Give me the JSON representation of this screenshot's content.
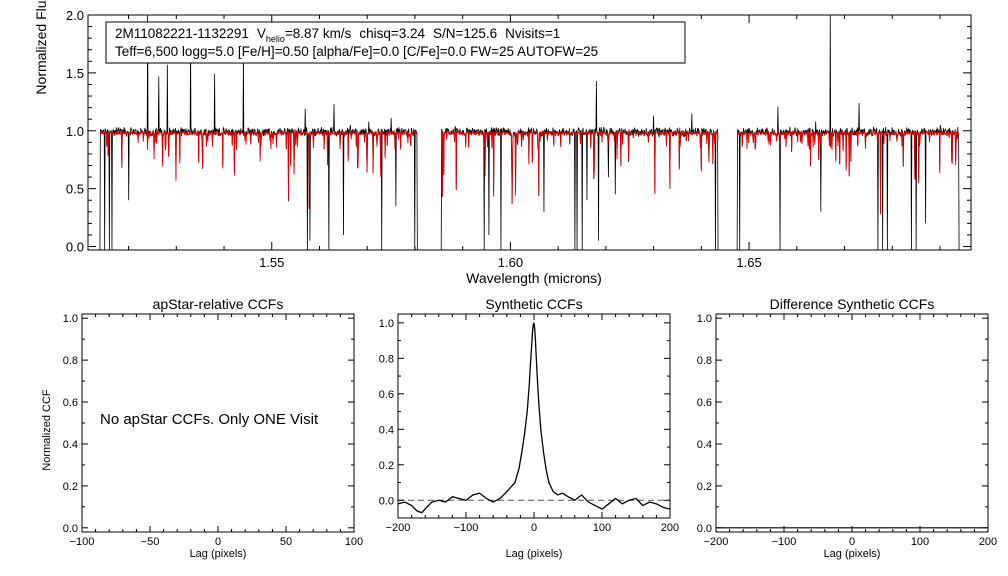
{
  "colors": {
    "observed": "#000000",
    "model": "#dd0000",
    "axis": "#000000",
    "reference": "#555555"
  },
  "info_box": {
    "object": "2M11082221-1132291",
    "vhelio_label": "V",
    "vhelio_sub": "helio",
    "vhelio_text": "=8.87 km/s",
    "chisq_text": "chisq=3.24",
    "sn_text": "S/N=125.6",
    "nvisits_text": "Nvisits=1",
    "params_line": "Teff=6,500 logg=5.0 [Fe/H]=0.50 [alpha/Fe]=0.0 [C/Fe]=0.0 FW=25 AUTOFW=25"
  },
  "chart_data": [
    {
      "id": "spectrum",
      "type": "line",
      "title": "",
      "xlabel": "Wavelength (microns)",
      "ylabel": "Normalized Flux",
      "xlim": [
        1.5115,
        1.6965
      ],
      "ylim": [
        -0.03,
        2.0
      ],
      "xticks": [
        1.55,
        1.6,
        1.65
      ],
      "xtick_labels": [
        "1.55",
        "1.60",
        "1.65"
      ],
      "yticks": [
        0.0,
        0.5,
        1.0,
        1.5,
        2.0
      ],
      "ytick_labels": [
        "0.0",
        "0.5",
        "1.0",
        "1.5",
        "2.0"
      ],
      "continuum": 0.98,
      "chips": [
        [
          1.514,
          1.5805
        ],
        [
          1.5855,
          1.6435
        ],
        [
          1.6475,
          1.694
        ]
      ],
      "series": [
        {
          "name": "observed spectrum",
          "color": "#000000"
        },
        {
          "name": "synthetic model",
          "color": "#dd0000"
        }
      ],
      "emission_spikes": [
        [
          1.518,
          1.03
        ],
        [
          1.524,
          2.0
        ],
        [
          1.5263,
          1.47
        ],
        [
          1.5281,
          1.57
        ],
        [
          1.533,
          1.77
        ],
        [
          1.538,
          1.49
        ],
        [
          1.5441,
          1.65
        ],
        [
          1.557,
          1.19
        ],
        [
          1.563,
          1.23
        ],
        [
          1.5665,
          1.05
        ],
        [
          1.5703,
          1.08
        ],
        [
          1.575,
          1.11
        ],
        [
          1.618,
          1.43
        ],
        [
          1.63,
          1.13
        ],
        [
          1.638,
          1.15
        ],
        [
          1.656,
          1.21
        ],
        [
          1.664,
          1.08
        ],
        [
          1.667,
          2.0
        ],
        [
          1.673,
          1.24
        ],
        [
          1.68,
          1.03
        ],
        [
          1.687,
          1.69
        ],
        [
          1.69,
          1.05
        ]
      ],
      "deep_dropouts": [
        [
          1.515,
          -0.03
        ],
        [
          1.516,
          -0.03
        ],
        [
          1.5165,
          -0.03
        ],
        [
          1.52,
          0.4
        ],
        [
          1.5575,
          -0.03
        ],
        [
          1.558,
          0.05
        ],
        [
          1.562,
          -0.03
        ],
        [
          1.565,
          0.1
        ],
        [
          1.573,
          -0.03
        ],
        [
          1.576,
          0.35
        ],
        [
          1.58,
          -0.03
        ],
        [
          1.5945,
          -0.03
        ],
        [
          1.5955,
          0.1
        ],
        [
          1.598,
          -0.03
        ],
        [
          1.607,
          0.3
        ],
        [
          1.6135,
          -0.03
        ],
        [
          1.614,
          -0.03
        ],
        [
          1.615,
          -0.03
        ],
        [
          1.616,
          0.4
        ],
        [
          1.6185,
          0.05
        ],
        [
          1.6205,
          0.6
        ],
        [
          1.622,
          0.45
        ],
        [
          1.643,
          -0.03
        ],
        [
          1.648,
          -0.03
        ],
        [
          1.6565,
          -0.03
        ],
        [
          1.665,
          0.3
        ],
        [
          1.677,
          -0.03
        ],
        [
          1.678,
          -0.03
        ],
        [
          1.679,
          -0.03
        ],
        [
          1.684,
          -0.03
        ],
        [
          1.685,
          -0.03
        ],
        [
          1.687,
          0.2
        ]
      ]
    },
    {
      "id": "apstar-ccf",
      "type": "line",
      "title": "apStar-relative CCFs",
      "xlabel": "Lag (pixels)",
      "ylabel": "Normalized CCF",
      "xlim": [
        -100,
        100
      ],
      "ylim": [
        -0.02,
        1.02
      ],
      "xticks": [
        -100,
        -50,
        0,
        50,
        100
      ],
      "xtick_labels": [
        "−100",
        "−50",
        "0",
        "50",
        "100"
      ],
      "yticks": [
        0.0,
        0.2,
        0.4,
        0.6,
        0.8,
        1.0
      ],
      "ytick_labels": [
        "0.0",
        "0.2",
        "0.4",
        "0.6",
        "0.8",
        "1.0"
      ],
      "annotation": "No apStar CCFs.  Only ONE Visit",
      "series": []
    },
    {
      "id": "synthetic-ccf",
      "type": "line",
      "title": "Synthetic CCFs",
      "xlabel": "Lag (pixels)",
      "ylabel": "",
      "xlim": [
        -200,
        200
      ],
      "ylim": [
        -0.1,
        1.05
      ],
      "xticks": [
        -200,
        -100,
        0,
        100,
        200
      ],
      "xtick_labels": [
        "−200",
        "−100",
        "0",
        "100",
        "200"
      ],
      "yticks": [
        0.0,
        0.2,
        0.4,
        0.6,
        0.8,
        1.0
      ],
      "ytick_labels": [
        "0.0",
        "0.2",
        "0.4",
        "0.6",
        "0.8",
        "1.0"
      ],
      "reference_line": 0.0,
      "series": [
        {
          "name": "synthetic CCF",
          "x": [
            -200,
            -190,
            -180,
            -172,
            -165,
            -158,
            -150,
            -140,
            -130,
            -120,
            -110,
            -100,
            -90,
            -80,
            -70,
            -60,
            -50,
            -42,
            -35,
            -28,
            -22,
            -18,
            -14,
            -10,
            -7,
            -5,
            -3,
            -2,
            -1,
            0,
            1,
            2,
            3,
            5,
            7,
            10,
            14,
            18,
            22,
            28,
            35,
            42,
            50,
            60,
            70,
            80,
            90,
            100,
            110,
            120,
            130,
            140,
            150,
            160,
            170,
            180,
            190,
            200
          ],
          "y": [
            -0.02,
            -0.01,
            -0.03,
            -0.06,
            -0.07,
            -0.04,
            -0.01,
            0.0,
            -0.01,
            0.02,
            0.01,
            0.0,
            0.03,
            0.04,
            0.01,
            -0.01,
            0.01,
            0.04,
            0.07,
            0.1,
            0.18,
            0.27,
            0.37,
            0.5,
            0.65,
            0.78,
            0.9,
            0.96,
            0.99,
            1.0,
            0.97,
            0.91,
            0.83,
            0.68,
            0.55,
            0.4,
            0.27,
            0.17,
            0.1,
            0.05,
            0.03,
            0.04,
            0.02,
            0.0,
            0.03,
            -0.01,
            -0.03,
            -0.05,
            -0.02,
            0.01,
            -0.02,
            0.0,
            0.01,
            -0.03,
            -0.01,
            -0.02,
            -0.04,
            -0.05
          ]
        }
      ]
    },
    {
      "id": "difference-ccf",
      "type": "line",
      "title": "Difference Synthetic CCFs",
      "xlabel": "Lag (pixels)",
      "ylabel": "",
      "xlim": [
        -200,
        200
      ],
      "ylim": [
        -0.02,
        1.02
      ],
      "xticks": [
        -200,
        -100,
        0,
        100,
        200
      ],
      "xtick_labels": [
        "−200",
        "−100",
        "0",
        "100",
        "200"
      ],
      "yticks": [
        0.0,
        0.2,
        0.4,
        0.6,
        0.8,
        1.0
      ],
      "ytick_labels": [
        "0.0",
        "0.2",
        "0.4",
        "0.6",
        "0.8",
        "1.0"
      ],
      "series": [
        {
          "name": "difference CCF",
          "x": [
            -200,
            200
          ],
          "y": [
            0.0,
            0.0
          ]
        }
      ]
    }
  ]
}
